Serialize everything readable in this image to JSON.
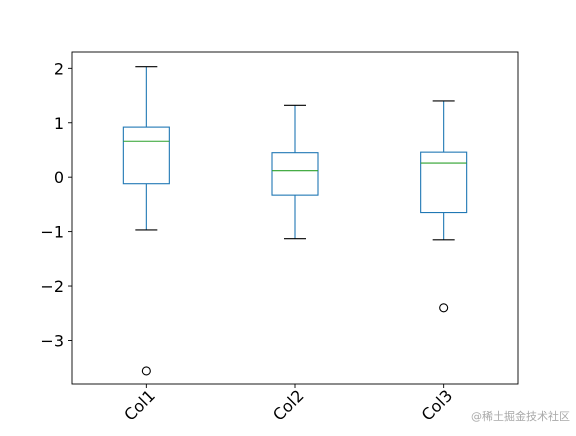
{
  "chart_data": {
    "type": "box",
    "categories": [
      "Col1",
      "Col2",
      "Col3"
    ],
    "ylim": [
      -3.8,
      2.3
    ],
    "yticks": [
      2,
      1,
      0,
      -1,
      -2,
      -3
    ],
    "ytick_labels": [
      "2",
      "1",
      "0",
      "−1",
      "−2",
      "−3"
    ],
    "grid": false,
    "boxes": [
      {
        "name": "Col1",
        "whisker_low": -0.97,
        "q1": -0.12,
        "median": 0.66,
        "q3": 0.92,
        "whisker_high": 2.03,
        "outliers": [
          -3.56
        ]
      },
      {
        "name": "Col2",
        "whisker_low": -1.13,
        "q1": -0.33,
        "median": 0.12,
        "q3": 0.45,
        "whisker_high": 1.32,
        "outliers": []
      },
      {
        "name": "Col3",
        "whisker_low": -1.15,
        "q1": -0.65,
        "median": 0.26,
        "q3": 0.46,
        "whisker_high": 1.4,
        "outliers": [
          -2.4
        ]
      }
    ],
    "colors": {
      "box": "#1f77b4",
      "median": "#2ca02c",
      "outlier": "#000000",
      "axes": "#000000"
    }
  },
  "watermark": "@稀土掘金技术社区"
}
